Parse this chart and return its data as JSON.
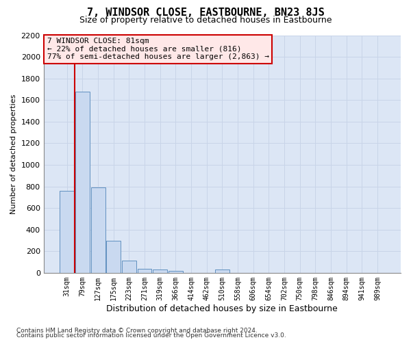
{
  "title": "7, WINDSOR CLOSE, EASTBOURNE, BN23 8JS",
  "subtitle": "Size of property relative to detached houses in Eastbourne",
  "xlabel": "Distribution of detached houses by size in Eastbourne",
  "ylabel": "Number of detached properties",
  "categories": [
    "31sqm",
    "79sqm",
    "127sqm",
    "175sqm",
    "223sqm",
    "271sqm",
    "319sqm",
    "366sqm",
    "414sqm",
    "462sqm",
    "510sqm",
    "558sqm",
    "606sqm",
    "654sqm",
    "702sqm",
    "750sqm",
    "798sqm",
    "846sqm",
    "894sqm",
    "941sqm",
    "989sqm"
  ],
  "values": [
    760,
    1680,
    790,
    295,
    110,
    40,
    30,
    20,
    0,
    0,
    30,
    0,
    0,
    0,
    0,
    0,
    0,
    0,
    0,
    0,
    0
  ],
  "bar_color": "#c9d9f0",
  "bar_edge_color": "#6090c0",
  "ylim": [
    0,
    2200
  ],
  "yticks": [
    0,
    200,
    400,
    600,
    800,
    1000,
    1200,
    1400,
    1600,
    1800,
    2000,
    2200
  ],
  "annotation_box_text": "7 WINDSOR CLOSE: 81sqm\n← 22% of detached houses are smaller (816)\n77% of semi-detached houses are larger (2,863) →",
  "annotation_box_facecolor": "#ffe8e8",
  "annotation_box_edgecolor": "#cc0000",
  "red_line_x": 0.5,
  "footnote1": "Contains HM Land Registry data © Crown copyright and database right 2024.",
  "footnote2": "Contains public sector information licensed under the Open Government Licence v3.0.",
  "grid_color": "#c8d4e8",
  "background_color": "#dce6f5",
  "title_fontsize": 11,
  "subtitle_fontsize": 9,
  "ylabel_fontsize": 8,
  "xlabel_fontsize": 9,
  "ytick_fontsize": 8,
  "xtick_fontsize": 7,
  "annot_fontsize": 8,
  "footnote_fontsize": 6.5
}
